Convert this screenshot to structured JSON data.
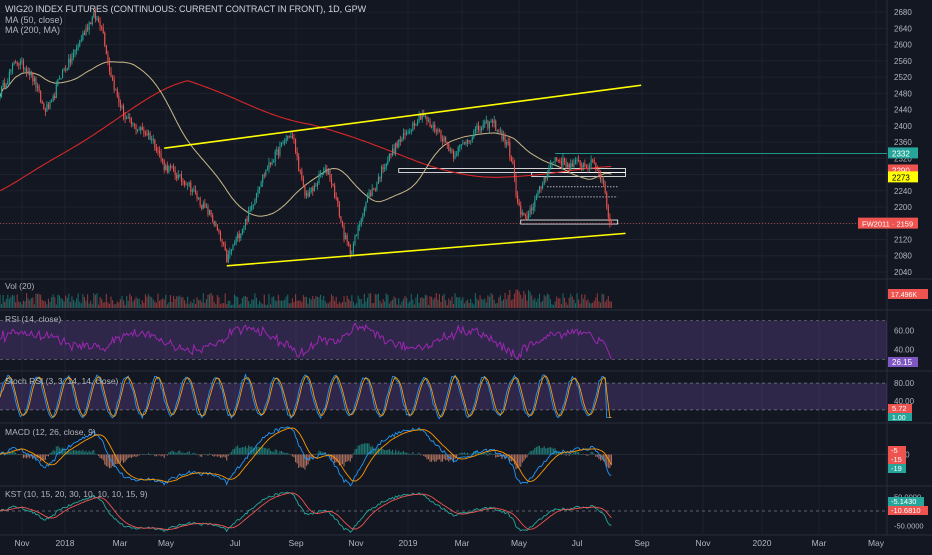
{
  "header": {
    "title": "WIG20 INDEX FUTURES (CONTINUOUS: CURRENT CONTRACT IN FRONT), 1D, GPW",
    "ma50_label": "MA (50, close)",
    "ma200_label": "MA (200, MA)"
  },
  "colors": {
    "background": "#131722",
    "grid": "#1e222d",
    "axis_text": "#b2b5be",
    "up": "#26a69a",
    "down": "#ef5350",
    "trend": "#ffff00",
    "ma50": "#c9b98a",
    "ma200": "#d62728",
    "rsi_line": "#9c27b0",
    "band": "rgba(126,87,194,0.25)",
    "stoch_k": "#2196f3",
    "stoch_d": "#ff9800",
    "macd": "#2196f3",
    "macd_signal": "#ff9800",
    "kst": "#26a69a",
    "kst_signal": "#ef5350"
  },
  "chart_data": {
    "type": "candlestick",
    "x_axis": {
      "labels": [
        "Nov",
        "2018",
        "Mar",
        "May",
        "Jul",
        "Sep",
        "Nov",
        "2019",
        "Mar",
        "May",
        "Jul",
        "Sep",
        "Nov",
        "2020",
        "Mar",
        "May"
      ]
    },
    "price": {
      "ylim": [
        2030,
        2710
      ],
      "ticks": [
        2040,
        2080,
        2120,
        2160,
        2200,
        2240,
        2280,
        2320,
        2360,
        2400,
        2440,
        2480,
        2520,
        2560,
        2600,
        2640,
        2680
      ],
      "current_label": "FW2011",
      "current_value": 2159,
      "markers": [
        {
          "label": "2332",
          "value": 2332,
          "color": "#26a69a"
        },
        {
          "label": "2290",
          "value": 2290,
          "color": "#ef5350"
        },
        {
          "label": "2273",
          "value": 2273,
          "color": "#ffff00"
        }
      ],
      "keypoints": [
        [
          0,
          2480
        ],
        [
          5,
          2520
        ],
        [
          10,
          2560
        ],
        [
          18,
          2540
        ],
        [
          23,
          2500
        ],
        [
          28,
          2440
        ],
        [
          33,
          2450
        ],
        [
          38,
          2520
        ],
        [
          45,
          2560
        ],
        [
          50,
          2600
        ],
        [
          55,
          2640
        ],
        [
          60,
          2670
        ],
        [
          65,
          2650
        ],
        [
          70,
          2540
        ],
        [
          75,
          2470
        ],
        [
          80,
          2420
        ],
        [
          85,
          2400
        ],
        [
          90,
          2390
        ],
        [
          95,
          2380
        ],
        [
          100,
          2350
        ],
        [
          105,
          2300
        ],
        [
          110,
          2290
        ],
        [
          115,
          2270
        ],
        [
          120,
          2260
        ],
        [
          125,
          2230
        ],
        [
          130,
          2200
        ],
        [
          135,
          2180
        ],
        [
          140,
          2130
        ],
        [
          143,
          2100
        ],
        [
          145,
          2070
        ],
        [
          150,
          2110
        ],
        [
          155,
          2150
        ],
        [
          160,
          2190
        ],
        [
          165,
          2250
        ],
        [
          170,
          2290
        ],
        [
          175,
          2320
        ],
        [
          180,
          2350
        ],
        [
          185,
          2380
        ],
        [
          188,
          2360
        ],
        [
          192,
          2280
        ],
        [
          195,
          2230
        ],
        [
          200,
          2240
        ],
        [
          205,
          2280
        ],
        [
          210,
          2290
        ],
        [
          215,
          2220
        ],
        [
          220,
          2130
        ],
        [
          224,
          2090
        ],
        [
          228,
          2130
        ],
        [
          232,
          2190
        ],
        [
          236,
          2230
        ],
        [
          240,
          2250
        ],
        [
          245,
          2300
        ],
        [
          250,
          2330
        ],
        [
          255,
          2360
        ],
        [
          260,
          2380
        ],
        [
          265,
          2410
        ],
        [
          270,
          2430
        ],
        [
          275,
          2400
        ],
        [
          280,
          2390
        ],
        [
          285,
          2360
        ],
        [
          290,
          2330
        ],
        [
          295,
          2350
        ],
        [
          300,
          2370
        ],
        [
          305,
          2390
        ],
        [
          310,
          2400
        ],
        [
          315,
          2410
        ],
        [
          320,
          2380
        ],
        [
          325,
          2350
        ],
        [
          328,
          2300
        ],
        [
          330,
          2230
        ],
        [
          333,
          2180
        ],
        [
          336,
          2170
        ],
        [
          340,
          2200
        ],
        [
          345,
          2240
        ],
        [
          350,
          2290
        ],
        [
          355,
          2320
        ],
        [
          360,
          2310
        ],
        [
          365,
          2300
        ],
        [
          370,
          2310
        ],
        [
          375,
          2300
        ],
        [
          380,
          2310
        ],
        [
          383,
          2280
        ],
        [
          386,
          2260
        ],
        [
          389,
          2180
        ],
        [
          391,
          2159
        ]
      ],
      "trendlines": [
        {
          "from": [
            105,
            2345
          ],
          "to": [
            410,
            2500
          ]
        },
        {
          "from": [
            145,
            2055
          ],
          "to": [
            400,
            2135
          ]
        }
      ],
      "zones": [
        {
          "from": 255,
          "to": 400,
          "value": 2290
        },
        {
          "from": 340,
          "to": 400,
          "value": 2280
        },
        {
          "from": 333,
          "to": 395,
          "value": 2163
        }
      ],
      "dotted_levels": [
        {
          "from": 350,
          "to": 395,
          "value": 2250
        },
        {
          "from": 345,
          "to": 395,
          "value": 2225
        }
      ]
    },
    "volume": {
      "label": "Vol (20)",
      "current_label": "17.496K"
    },
    "rsi": {
      "label": "RSI (14, close)",
      "ticks": [
        40.0,
        60.0
      ],
      "current_label": "26.15"
    },
    "stoch_rsi": {
      "label": "Stoch RSI (3, 3, 14, 14, close)",
      "ticks": [
        40.0,
        80.0
      ],
      "current_labels": [
        "5.72",
        "1.00"
      ]
    },
    "macd": {
      "label": "MACD (12, 26, close, 9)",
      "ticks": [
        0.0
      ],
      "current_labels": [
        "-5",
        "-15",
        "-19"
      ]
    },
    "kst": {
      "label": "KST (10, 15, 20, 30, 10, 10, 10, 15, 9)",
      "ticks": [
        50.0,
        -50.0
      ],
      "current_labels": [
        "-5.1430",
        "-10.6810"
      ]
    }
  }
}
